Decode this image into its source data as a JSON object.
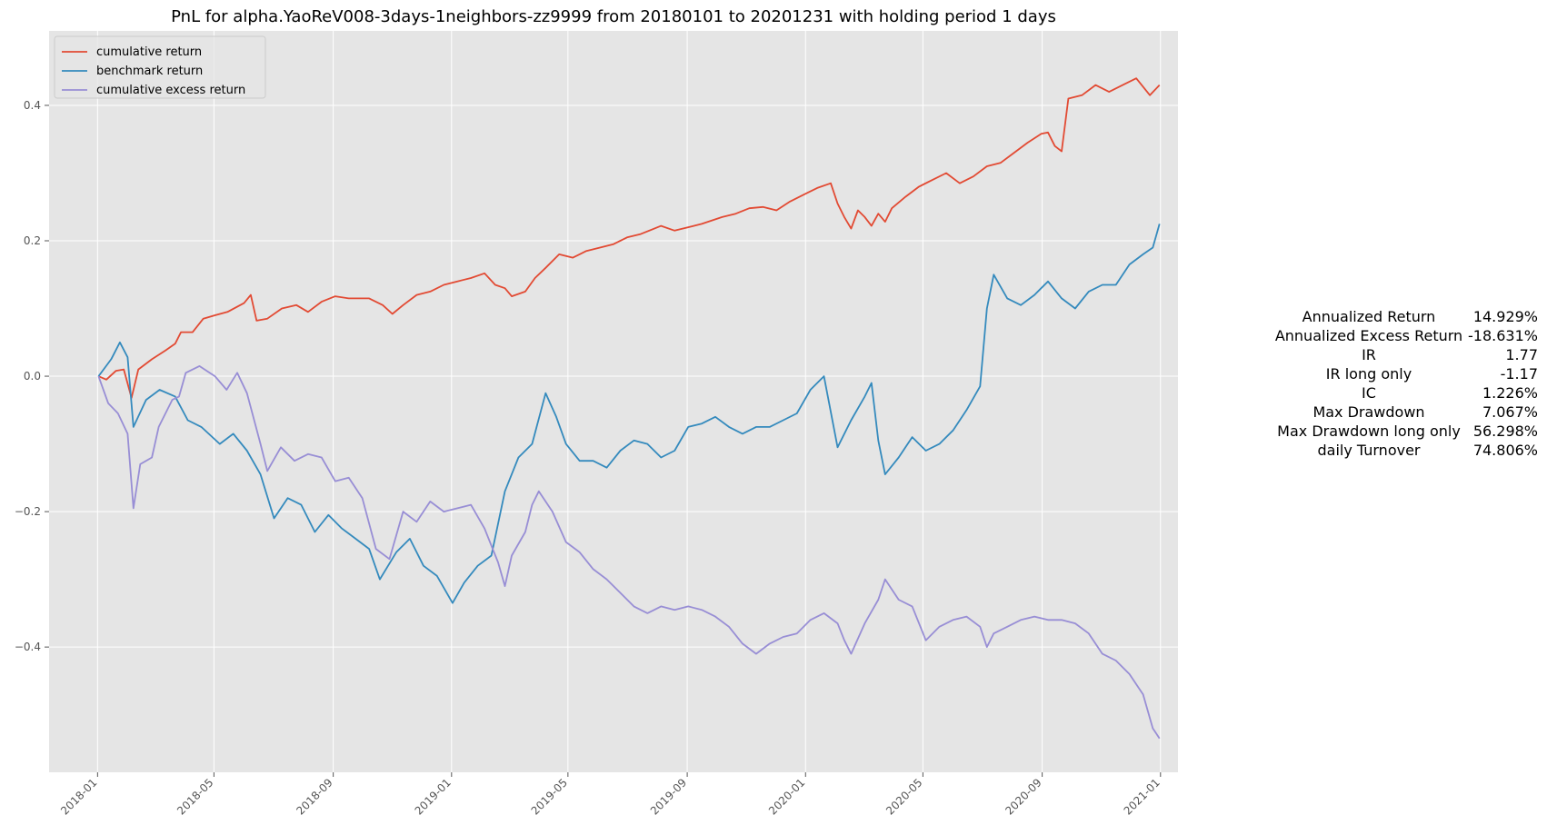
{
  "chart_data": {
    "type": "line",
    "title": "PnL for alpha.YaoReV008-3days-1neighbors-zz9999 from 20180101 to 20201231 with holding period 1 days",
    "xlabel": "",
    "ylabel": "",
    "x_range": [
      "2017-11-12",
      "2021-01-19"
    ],
    "ylim": [
      -0.585,
      0.51
    ],
    "x_ticks": [
      "2018-01",
      "2018-05",
      "2018-09",
      "2019-01",
      "2019-05",
      "2019-09",
      "2020-01",
      "2020-05",
      "2020-09",
      "2021-01"
    ],
    "y_ticks": [
      -0.4,
      -0.2,
      0.0,
      0.2,
      0.4
    ],
    "y_tick_labels": [
      "−0.4",
      "−0.2",
      "0.0",
      "0.2",
      "0.4"
    ],
    "grid": true,
    "legend_position": "top-left",
    "background": "#e5e5e5",
    "series": [
      {
        "name": "cumulative return",
        "color": "#e24a33",
        "points": [
          [
            "2018-01-02",
            0.0
          ],
          [
            "2018-01-10",
            -0.005
          ],
          [
            "2018-01-20",
            0.008
          ],
          [
            "2018-01-28",
            0.01
          ],
          [
            "2018-02-05",
            -0.032
          ],
          [
            "2018-02-12",
            0.01
          ],
          [
            "2018-02-26",
            0.025
          ],
          [
            "2018-03-12",
            0.038
          ],
          [
            "2018-03-22",
            0.048
          ],
          [
            "2018-03-28",
            0.065
          ],
          [
            "2018-04-09",
            0.065
          ],
          [
            "2018-04-20",
            0.085
          ],
          [
            "2018-05-02",
            0.09
          ],
          [
            "2018-05-15",
            0.095
          ],
          [
            "2018-06-01",
            0.108
          ],
          [
            "2018-06-08",
            0.12
          ],
          [
            "2018-06-14",
            0.082
          ],
          [
            "2018-06-25",
            0.085
          ],
          [
            "2018-07-10",
            0.1
          ],
          [
            "2018-07-25",
            0.105
          ],
          [
            "2018-08-06",
            0.095
          ],
          [
            "2018-08-20",
            0.11
          ],
          [
            "2018-09-03",
            0.118
          ],
          [
            "2018-09-17",
            0.115
          ],
          [
            "2018-10-08",
            0.115
          ],
          [
            "2018-10-22",
            0.105
          ],
          [
            "2018-11-01",
            0.092
          ],
          [
            "2018-11-12",
            0.105
          ],
          [
            "2018-11-26",
            0.12
          ],
          [
            "2018-12-10",
            0.125
          ],
          [
            "2018-12-24",
            0.135
          ],
          [
            "2019-01-07",
            0.14
          ],
          [
            "2019-01-21",
            0.145
          ],
          [
            "2019-02-04",
            0.152
          ],
          [
            "2019-02-15",
            0.135
          ],
          [
            "2019-02-25",
            0.13
          ],
          [
            "2019-03-04",
            0.118
          ],
          [
            "2019-03-18",
            0.125
          ],
          [
            "2019-03-28",
            0.145
          ],
          [
            "2019-04-08",
            0.16
          ],
          [
            "2019-04-22",
            0.18
          ],
          [
            "2019-05-06",
            0.175
          ],
          [
            "2019-05-20",
            0.185
          ],
          [
            "2019-06-03",
            0.19
          ],
          [
            "2019-06-17",
            0.195
          ],
          [
            "2019-07-01",
            0.205
          ],
          [
            "2019-07-15",
            0.21
          ],
          [
            "2019-08-05",
            0.222
          ],
          [
            "2019-08-19",
            0.215
          ],
          [
            "2019-09-02",
            0.22
          ],
          [
            "2019-09-16",
            0.225
          ],
          [
            "2019-10-07",
            0.235
          ],
          [
            "2019-10-21",
            0.24
          ],
          [
            "2019-11-04",
            0.248
          ],
          [
            "2019-11-18",
            0.25
          ],
          [
            "2019-12-02",
            0.245
          ],
          [
            "2019-12-16",
            0.258
          ],
          [
            "2019-12-30",
            0.268
          ],
          [
            "2020-01-13",
            0.278
          ],
          [
            "2020-01-27",
            0.285
          ],
          [
            "2020-02-03",
            0.255
          ],
          [
            "2020-02-10",
            0.235
          ],
          [
            "2020-02-17",
            0.218
          ],
          [
            "2020-02-24",
            0.245
          ],
          [
            "2020-03-02",
            0.235
          ],
          [
            "2020-03-09",
            0.222
          ],
          [
            "2020-03-16",
            0.24
          ],
          [
            "2020-03-23",
            0.228
          ],
          [
            "2020-03-30",
            0.248
          ],
          [
            "2020-04-13",
            0.265
          ],
          [
            "2020-04-27",
            0.28
          ],
          [
            "2020-05-11",
            0.29
          ],
          [
            "2020-05-25",
            0.3
          ],
          [
            "2020-06-08",
            0.285
          ],
          [
            "2020-06-22",
            0.295
          ],
          [
            "2020-07-06",
            0.31
          ],
          [
            "2020-07-20",
            0.315
          ],
          [
            "2020-08-03",
            0.33
          ],
          [
            "2020-08-17",
            0.345
          ],
          [
            "2020-08-31",
            0.358
          ],
          [
            "2020-09-07",
            0.36
          ],
          [
            "2020-09-14",
            0.34
          ],
          [
            "2020-09-21",
            0.332
          ],
          [
            "2020-09-28",
            0.41
          ],
          [
            "2020-10-12",
            0.415
          ],
          [
            "2020-10-26",
            0.43
          ],
          [
            "2020-11-09",
            0.42
          ],
          [
            "2020-11-23",
            0.43
          ],
          [
            "2020-12-07",
            0.44
          ],
          [
            "2020-12-21",
            0.415
          ],
          [
            "2020-12-31",
            0.43
          ]
        ]
      },
      {
        "name": "benchmark return",
        "color": "#348abd",
        "points": [
          [
            "2018-01-02",
            0.0
          ],
          [
            "2018-01-15",
            0.025
          ],
          [
            "2018-01-24",
            0.05
          ],
          [
            "2018-02-01",
            0.028
          ],
          [
            "2018-02-07",
            -0.075
          ],
          [
            "2018-02-20",
            -0.035
          ],
          [
            "2018-03-06",
            -0.02
          ],
          [
            "2018-03-22",
            -0.03
          ],
          [
            "2018-04-04",
            -0.065
          ],
          [
            "2018-04-18",
            -0.075
          ],
          [
            "2018-05-07",
            -0.1
          ],
          [
            "2018-05-21",
            -0.085
          ],
          [
            "2018-06-04",
            -0.11
          ],
          [
            "2018-06-18",
            -0.145
          ],
          [
            "2018-07-02",
            -0.21
          ],
          [
            "2018-07-16",
            -0.18
          ],
          [
            "2018-07-30",
            -0.19
          ],
          [
            "2018-08-13",
            -0.23
          ],
          [
            "2018-08-27",
            -0.205
          ],
          [
            "2018-09-10",
            -0.225
          ],
          [
            "2018-09-24",
            -0.24
          ],
          [
            "2018-10-08",
            -0.255
          ],
          [
            "2018-10-19",
            -0.3
          ],
          [
            "2018-11-05",
            -0.26
          ],
          [
            "2018-11-19",
            -0.24
          ],
          [
            "2018-12-03",
            -0.28
          ],
          [
            "2018-12-17",
            -0.295
          ],
          [
            "2019-01-02",
            -0.335
          ],
          [
            "2019-01-14",
            -0.305
          ],
          [
            "2019-01-28",
            -0.28
          ],
          [
            "2019-02-11",
            -0.265
          ],
          [
            "2019-02-25",
            -0.17
          ],
          [
            "2019-03-11",
            -0.12
          ],
          [
            "2019-03-25",
            -0.1
          ],
          [
            "2019-04-08",
            -0.025
          ],
          [
            "2019-04-19",
            -0.06
          ],
          [
            "2019-04-29",
            -0.1
          ],
          [
            "2019-05-13",
            -0.125
          ],
          [
            "2019-05-27",
            -0.125
          ],
          [
            "2019-06-10",
            -0.135
          ],
          [
            "2019-06-24",
            -0.11
          ],
          [
            "2019-07-08",
            -0.095
          ],
          [
            "2019-07-22",
            -0.1
          ],
          [
            "2019-08-05",
            -0.12
          ],
          [
            "2019-08-19",
            -0.11
          ],
          [
            "2019-09-02",
            -0.075
          ],
          [
            "2019-09-16",
            -0.07
          ],
          [
            "2019-09-30",
            -0.06
          ],
          [
            "2019-10-14",
            -0.075
          ],
          [
            "2019-10-28",
            -0.085
          ],
          [
            "2019-11-11",
            -0.075
          ],
          [
            "2019-11-25",
            -0.075
          ],
          [
            "2019-12-09",
            -0.065
          ],
          [
            "2019-12-23",
            -0.055
          ],
          [
            "2020-01-06",
            -0.02
          ],
          [
            "2020-01-20",
            0.0
          ],
          [
            "2020-02-03",
            -0.105
          ],
          [
            "2020-02-17",
            -0.065
          ],
          [
            "2020-03-02",
            -0.03
          ],
          [
            "2020-03-09",
            -0.01
          ],
          [
            "2020-03-16",
            -0.095
          ],
          [
            "2020-03-23",
            -0.145
          ],
          [
            "2020-04-06",
            -0.12
          ],
          [
            "2020-04-20",
            -0.09
          ],
          [
            "2020-05-04",
            -0.11
          ],
          [
            "2020-05-18",
            -0.1
          ],
          [
            "2020-06-01",
            -0.08
          ],
          [
            "2020-06-15",
            -0.05
          ],
          [
            "2020-06-29",
            -0.015
          ],
          [
            "2020-07-06",
            0.1
          ],
          [
            "2020-07-13",
            0.15
          ],
          [
            "2020-07-27",
            0.115
          ],
          [
            "2020-08-10",
            0.105
          ],
          [
            "2020-08-24",
            0.12
          ],
          [
            "2020-09-07",
            0.14
          ],
          [
            "2020-09-21",
            0.115
          ],
          [
            "2020-10-05",
            0.1
          ],
          [
            "2020-10-19",
            0.125
          ],
          [
            "2020-11-02",
            0.135
          ],
          [
            "2020-11-16",
            0.135
          ],
          [
            "2020-11-30",
            0.165
          ],
          [
            "2020-12-14",
            0.18
          ],
          [
            "2020-12-24",
            0.19
          ],
          [
            "2020-12-31",
            0.225
          ]
        ]
      },
      {
        "name": "cumulative excess return",
        "color": "#988ed5",
        "points": [
          [
            "2018-01-02",
            0.0
          ],
          [
            "2018-01-12",
            -0.04
          ],
          [
            "2018-01-22",
            -0.055
          ],
          [
            "2018-02-01",
            -0.085
          ],
          [
            "2018-02-07",
            -0.195
          ],
          [
            "2018-02-14",
            -0.13
          ],
          [
            "2018-02-26",
            -0.12
          ],
          [
            "2018-03-05",
            -0.075
          ],
          [
            "2018-03-19",
            -0.035
          ],
          [
            "2018-03-26",
            -0.03
          ],
          [
            "2018-04-02",
            0.005
          ],
          [
            "2018-04-16",
            0.015
          ],
          [
            "2018-05-02",
            0.0
          ],
          [
            "2018-05-14",
            -0.02
          ],
          [
            "2018-05-25",
            0.005
          ],
          [
            "2018-06-04",
            -0.025
          ],
          [
            "2018-06-18",
            -0.1
          ],
          [
            "2018-06-25",
            -0.14
          ],
          [
            "2018-07-09",
            -0.105
          ],
          [
            "2018-07-23",
            -0.125
          ],
          [
            "2018-08-06",
            -0.115
          ],
          [
            "2018-08-20",
            -0.12
          ],
          [
            "2018-09-03",
            -0.155
          ],
          [
            "2018-09-17",
            -0.15
          ],
          [
            "2018-10-01",
            -0.18
          ],
          [
            "2018-10-15",
            -0.255
          ],
          [
            "2018-10-29",
            -0.27
          ],
          [
            "2018-11-12",
            -0.2
          ],
          [
            "2018-11-26",
            -0.215
          ],
          [
            "2018-12-10",
            -0.185
          ],
          [
            "2018-12-24",
            -0.2
          ],
          [
            "2019-01-07",
            -0.195
          ],
          [
            "2019-01-21",
            -0.19
          ],
          [
            "2019-02-04",
            -0.225
          ],
          [
            "2019-02-18",
            -0.275
          ],
          [
            "2019-02-25",
            -0.31
          ],
          [
            "2019-03-04",
            -0.265
          ],
          [
            "2019-03-18",
            -0.23
          ],
          [
            "2019-03-25",
            -0.19
          ],
          [
            "2019-04-01",
            -0.17
          ],
          [
            "2019-04-15",
            -0.2
          ],
          [
            "2019-04-29",
            -0.245
          ],
          [
            "2019-05-13",
            -0.26
          ],
          [
            "2019-05-27",
            -0.285
          ],
          [
            "2019-06-10",
            -0.3
          ],
          [
            "2019-06-24",
            -0.32
          ],
          [
            "2019-07-08",
            -0.34
          ],
          [
            "2019-07-22",
            -0.35
          ],
          [
            "2019-08-05",
            -0.34
          ],
          [
            "2019-08-19",
            -0.345
          ],
          [
            "2019-09-02",
            -0.34
          ],
          [
            "2019-09-16",
            -0.345
          ],
          [
            "2019-09-30",
            -0.355
          ],
          [
            "2019-10-14",
            -0.37
          ],
          [
            "2019-10-28",
            -0.395
          ],
          [
            "2019-11-11",
            -0.41
          ],
          [
            "2019-11-25",
            -0.395
          ],
          [
            "2019-12-09",
            -0.385
          ],
          [
            "2019-12-23",
            -0.38
          ],
          [
            "2020-01-06",
            -0.36
          ],
          [
            "2020-01-20",
            -0.35
          ],
          [
            "2020-02-03",
            -0.365
          ],
          [
            "2020-02-10",
            -0.39
          ],
          [
            "2020-02-17",
            -0.41
          ],
          [
            "2020-03-02",
            -0.365
          ],
          [
            "2020-03-16",
            -0.33
          ],
          [
            "2020-03-23",
            -0.3
          ],
          [
            "2020-04-06",
            -0.33
          ],
          [
            "2020-04-20",
            -0.34
          ],
          [
            "2020-05-04",
            -0.39
          ],
          [
            "2020-05-18",
            -0.37
          ],
          [
            "2020-06-01",
            -0.36
          ],
          [
            "2020-06-15",
            -0.355
          ],
          [
            "2020-06-29",
            -0.37
          ],
          [
            "2020-07-06",
            -0.4
          ],
          [
            "2020-07-13",
            -0.38
          ],
          [
            "2020-07-27",
            -0.37
          ],
          [
            "2020-08-10",
            -0.36
          ],
          [
            "2020-08-24",
            -0.355
          ],
          [
            "2020-09-07",
            -0.36
          ],
          [
            "2020-09-21",
            -0.36
          ],
          [
            "2020-10-05",
            -0.365
          ],
          [
            "2020-10-19",
            -0.38
          ],
          [
            "2020-11-02",
            -0.41
          ],
          [
            "2020-11-16",
            -0.42
          ],
          [
            "2020-11-30",
            -0.44
          ],
          [
            "2020-12-14",
            -0.47
          ],
          [
            "2020-12-24",
            -0.52
          ],
          [
            "2020-12-31",
            -0.535
          ]
        ]
      }
    ]
  },
  "stats": [
    {
      "label": "Annualized Return",
      "value": "14.929%"
    },
    {
      "label": "Annualized Excess Return",
      "value": "-18.631%"
    },
    {
      "label": "IR",
      "value": "1.77"
    },
    {
      "label": "IR long only",
      "value": "-1.17"
    },
    {
      "label": "IC",
      "value": "1.226%"
    },
    {
      "label": "Max Drawdown",
      "value": "7.067%"
    },
    {
      "label": "Max Drawdown long only",
      "value": "56.298%"
    },
    {
      "label": "daily Turnover",
      "value": "74.806%"
    }
  ]
}
